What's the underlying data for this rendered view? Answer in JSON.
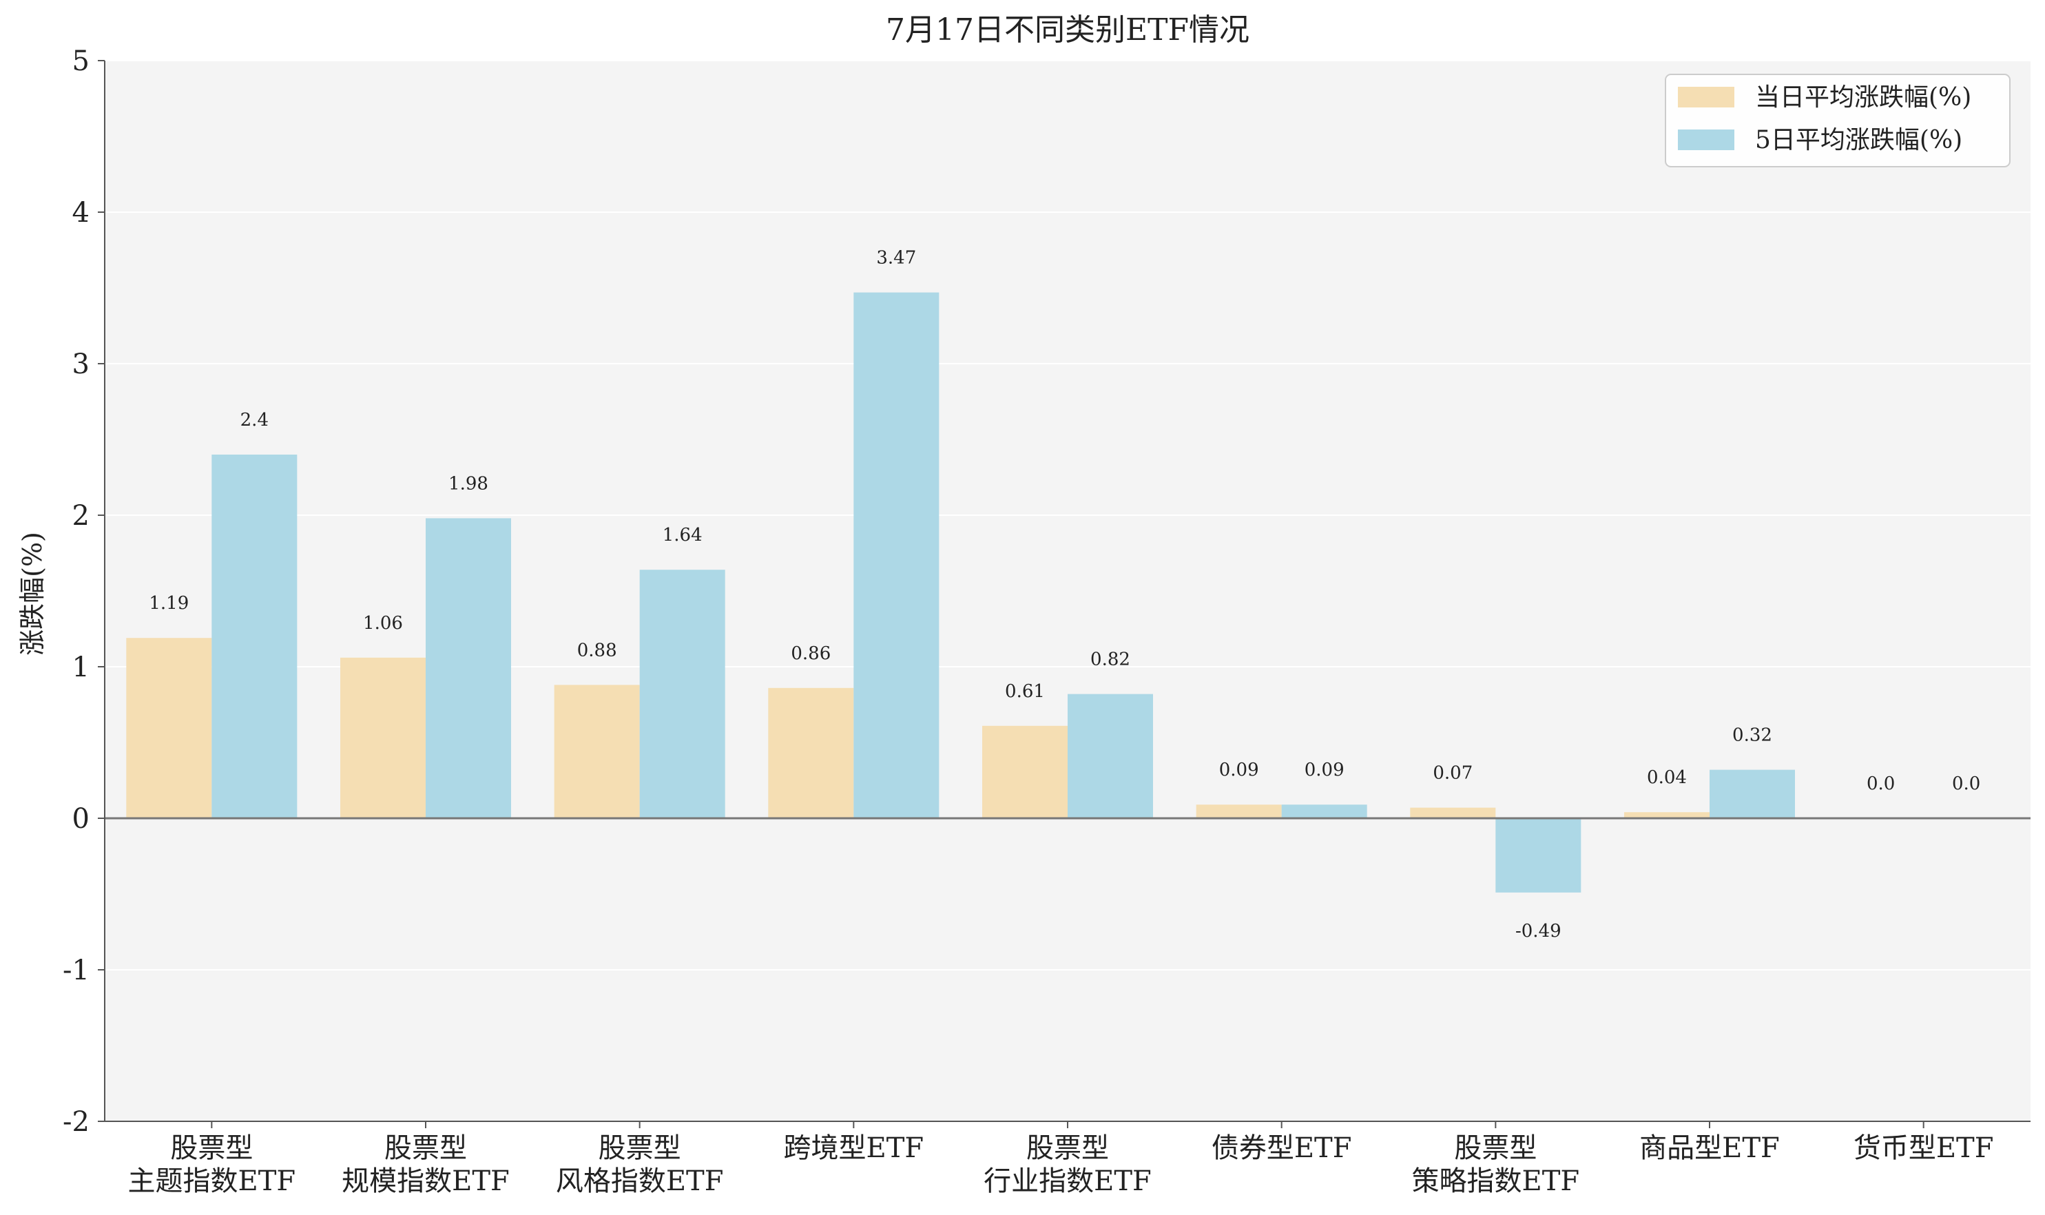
{
  "chart_data": {
    "type": "bar",
    "title": "7月17日不同类别ETF情况",
    "xlabel": "",
    "ylabel": "涨跌幅(%)",
    "ylim": [
      -2,
      5
    ],
    "yticks": [
      -2,
      -1,
      0,
      1,
      2,
      3,
      4,
      5
    ],
    "ytick_labels": [
      "-2",
      "-1",
      "0",
      "1",
      "2",
      "3",
      "4",
      "5"
    ],
    "grid": true,
    "legend_position": "top-right",
    "categories": [
      [
        "股票型",
        "主题指数ETF"
      ],
      [
        "股票型",
        "规模指数ETF"
      ],
      [
        "股票型",
        "风格指数ETF"
      ],
      [
        "跨境型ETF"
      ],
      [
        "股票型",
        "行业指数ETF"
      ],
      [
        "债券型ETF"
      ],
      [
        "股票型",
        "策略指数ETF"
      ],
      [
        "商品型ETF"
      ],
      [
        "货币型ETF"
      ]
    ],
    "series": [
      {
        "name": "当日平均涨跌幅(%)",
        "color": "#f5deb3",
        "values": [
          1.19,
          1.06,
          0.88,
          0.86,
          0.61,
          0.09,
          0.07,
          0.04,
          0.0
        ],
        "labels": [
          "1.19",
          "1.06",
          "0.88",
          "0.86",
          "0.61",
          "0.09",
          "0.07",
          "0.04",
          "0.0"
        ]
      },
      {
        "name": "5日平均涨跌幅(%)",
        "color": "#add8e6",
        "values": [
          2.4,
          1.98,
          1.64,
          3.47,
          0.82,
          0.09,
          -0.49,
          0.32,
          0.0
        ],
        "labels": [
          "2.4",
          "1.98",
          "1.64",
          "3.47",
          "0.82",
          "0.09",
          "-0.49",
          "0.32",
          "0.0"
        ]
      }
    ],
    "colors": {
      "plot_background": "#f4f4f4",
      "gridline": "#ffffff",
      "zero_line": "#777777",
      "axis": "#555555"
    }
  }
}
